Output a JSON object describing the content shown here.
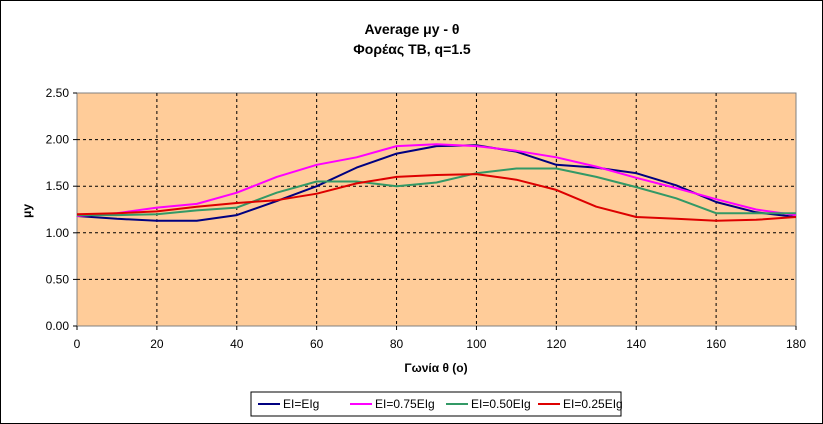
{
  "chart_data": {
    "type": "line",
    "title": "Average μy  - θ",
    "subtitle": "Φορέας ΤΒ, q=1.5",
    "xlabel": "Γωνία θ (ο)",
    "ylabel": "μy",
    "xlim": [
      0,
      180
    ],
    "ylim": [
      0,
      2.5
    ],
    "x_ticks": [
      "0",
      "20",
      "40",
      "60",
      "80",
      "100",
      "120",
      "140",
      "160",
      "180"
    ],
    "y_ticks": [
      "0.00",
      "0.50",
      "1.00",
      "1.50",
      "2.00",
      "2.50"
    ],
    "grid": "dashed",
    "legend_position": "bottom",
    "plot_background": "#FFCC99",
    "x": [
      0,
      10,
      20,
      30,
      40,
      50,
      60,
      70,
      80,
      90,
      100,
      110,
      120,
      130,
      140,
      150,
      160,
      170,
      180
    ],
    "series": [
      {
        "name": "EI=EIg",
        "color": "#000080",
        "values": [
          1.18,
          1.15,
          1.13,
          1.13,
          1.19,
          1.34,
          1.5,
          1.7,
          1.85,
          1.93,
          1.94,
          1.87,
          1.73,
          1.7,
          1.64,
          1.51,
          1.33,
          1.22,
          1.17
        ]
      },
      {
        "name": "EI=0.75EIg",
        "color": "#FF00FF",
        "values": [
          1.18,
          1.21,
          1.27,
          1.31,
          1.43,
          1.6,
          1.73,
          1.81,
          1.93,
          1.95,
          1.93,
          1.88,
          1.81,
          1.71,
          1.59,
          1.48,
          1.36,
          1.25,
          1.19
        ]
      },
      {
        "name": "EI=0.50EIg",
        "color": "#339966",
        "values": [
          1.19,
          1.19,
          1.2,
          1.24,
          1.27,
          1.43,
          1.55,
          1.55,
          1.5,
          1.54,
          1.64,
          1.69,
          1.69,
          1.6,
          1.49,
          1.37,
          1.21,
          1.21,
          1.21
        ]
      },
      {
        "name": "EI=0.25EIg",
        "color": "#DD0000",
        "values": [
          1.2,
          1.21,
          1.23,
          1.28,
          1.32,
          1.35,
          1.42,
          1.53,
          1.6,
          1.62,
          1.63,
          1.57,
          1.46,
          1.28,
          1.17,
          1.15,
          1.13,
          1.14,
          1.17
        ]
      }
    ]
  }
}
